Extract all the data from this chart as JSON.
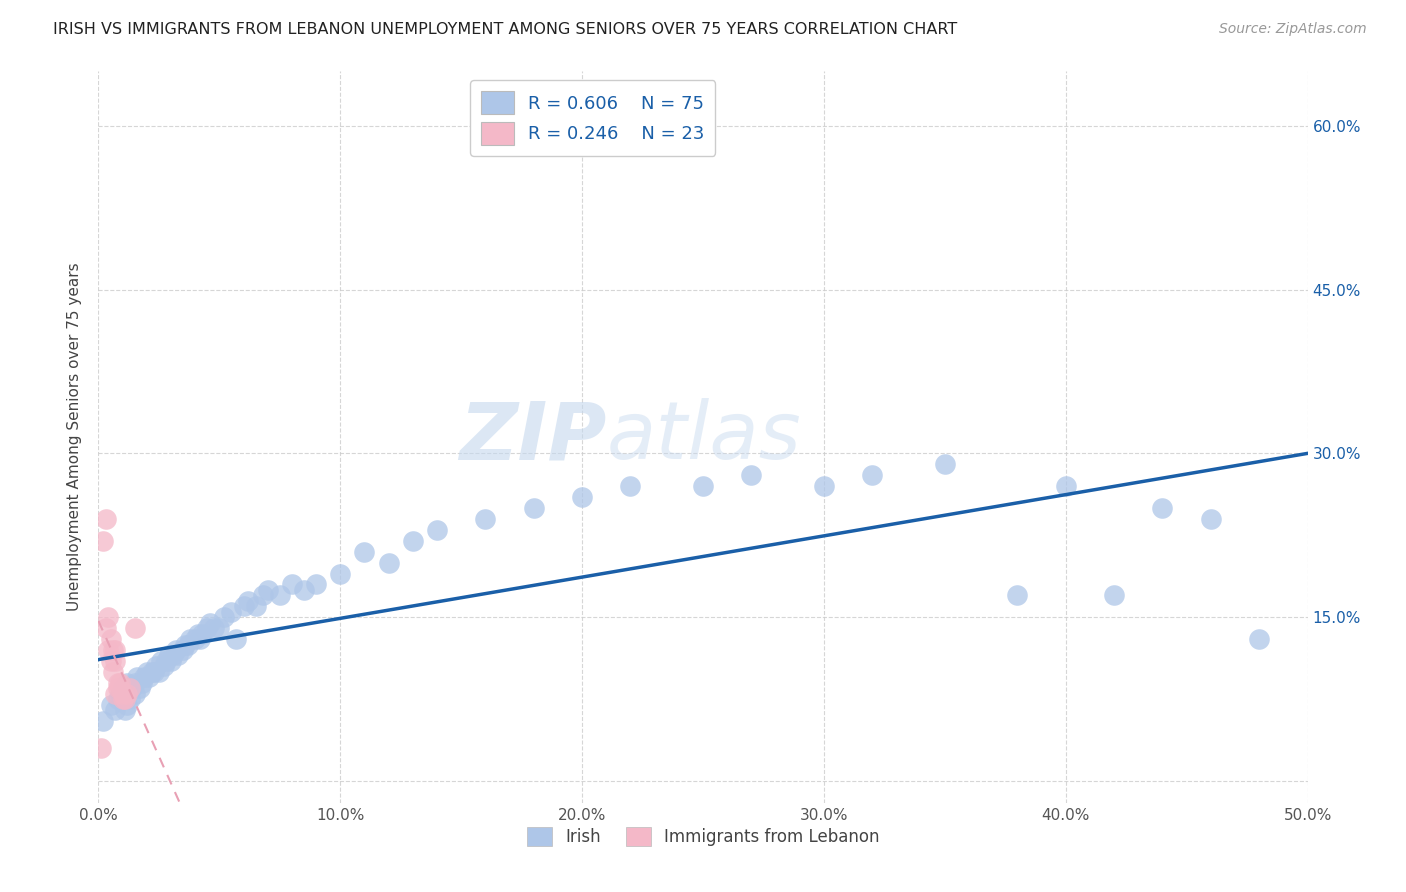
{
  "title": "IRISH VS IMMIGRANTS FROM LEBANON UNEMPLOYMENT AMONG SENIORS OVER 75 YEARS CORRELATION CHART",
  "source": "Source: ZipAtlas.com",
  "ylabel": "Unemployment Among Seniors over 75 years",
  "xlim": [
    0.0,
    0.5
  ],
  "ylim": [
    -0.02,
    0.65
  ],
  "irish_color": "#aec6e8",
  "lebanon_color": "#f4b8c8",
  "irish_line_color": "#1a5fa8",
  "lebanon_line_color": "#e8a0b4",
  "watermark_zip": "ZIP",
  "watermark_atlas": "atlas",
  "background_color": "#ffffff",
  "grid_color": "#cccccc",
  "irish_x": [
    0.002,
    0.005,
    0.007,
    0.008,
    0.009,
    0.01,
    0.011,
    0.012,
    0.012,
    0.013,
    0.014,
    0.015,
    0.015,
    0.016,
    0.017,
    0.018,
    0.019,
    0.02,
    0.021,
    0.022,
    0.023,
    0.024,
    0.025,
    0.026,
    0.027,
    0.028,
    0.029,
    0.03,
    0.031,
    0.032,
    0.033,
    0.035,
    0.036,
    0.037,
    0.038,
    0.04,
    0.041,
    0.042,
    0.043,
    0.045,
    0.046,
    0.048,
    0.05,
    0.052,
    0.055,
    0.057,
    0.06,
    0.062,
    0.065,
    0.068,
    0.07,
    0.075,
    0.08,
    0.085,
    0.09,
    0.1,
    0.11,
    0.12,
    0.13,
    0.14,
    0.16,
    0.18,
    0.2,
    0.22,
    0.25,
    0.27,
    0.3,
    0.32,
    0.35,
    0.38,
    0.4,
    0.42,
    0.44,
    0.46,
    0.48
  ],
  "irish_y": [
    0.055,
    0.07,
    0.065,
    0.075,
    0.08,
    0.085,
    0.065,
    0.07,
    0.09,
    0.075,
    0.085,
    0.08,
    0.09,
    0.095,
    0.085,
    0.09,
    0.095,
    0.1,
    0.095,
    0.1,
    0.1,
    0.105,
    0.1,
    0.11,
    0.105,
    0.11,
    0.115,
    0.11,
    0.115,
    0.12,
    0.115,
    0.12,
    0.125,
    0.125,
    0.13,
    0.13,
    0.135,
    0.13,
    0.135,
    0.14,
    0.145,
    0.14,
    0.14,
    0.15,
    0.155,
    0.13,
    0.16,
    0.165,
    0.16,
    0.17,
    0.175,
    0.17,
    0.18,
    0.175,
    0.18,
    0.19,
    0.21,
    0.2,
    0.22,
    0.23,
    0.24,
    0.25,
    0.26,
    0.27,
    0.27,
    0.28,
    0.27,
    0.28,
    0.29,
    0.17,
    0.27,
    0.17,
    0.25,
    0.24,
    0.13
  ],
  "lebanon_x": [
    0.001,
    0.002,
    0.003,
    0.003,
    0.004,
    0.004,
    0.005,
    0.005,
    0.006,
    0.006,
    0.007,
    0.007,
    0.007,
    0.008,
    0.008,
    0.009,
    0.009,
    0.01,
    0.01,
    0.011,
    0.012,
    0.013,
    0.015
  ],
  "lebanon_y": [
    0.03,
    0.22,
    0.24,
    0.14,
    0.15,
    0.12,
    0.13,
    0.11,
    0.12,
    0.1,
    0.11,
    0.12,
    0.08,
    0.085,
    0.09,
    0.085,
    0.09,
    0.075,
    0.08,
    0.075,
    0.08,
    0.085,
    0.14
  ]
}
